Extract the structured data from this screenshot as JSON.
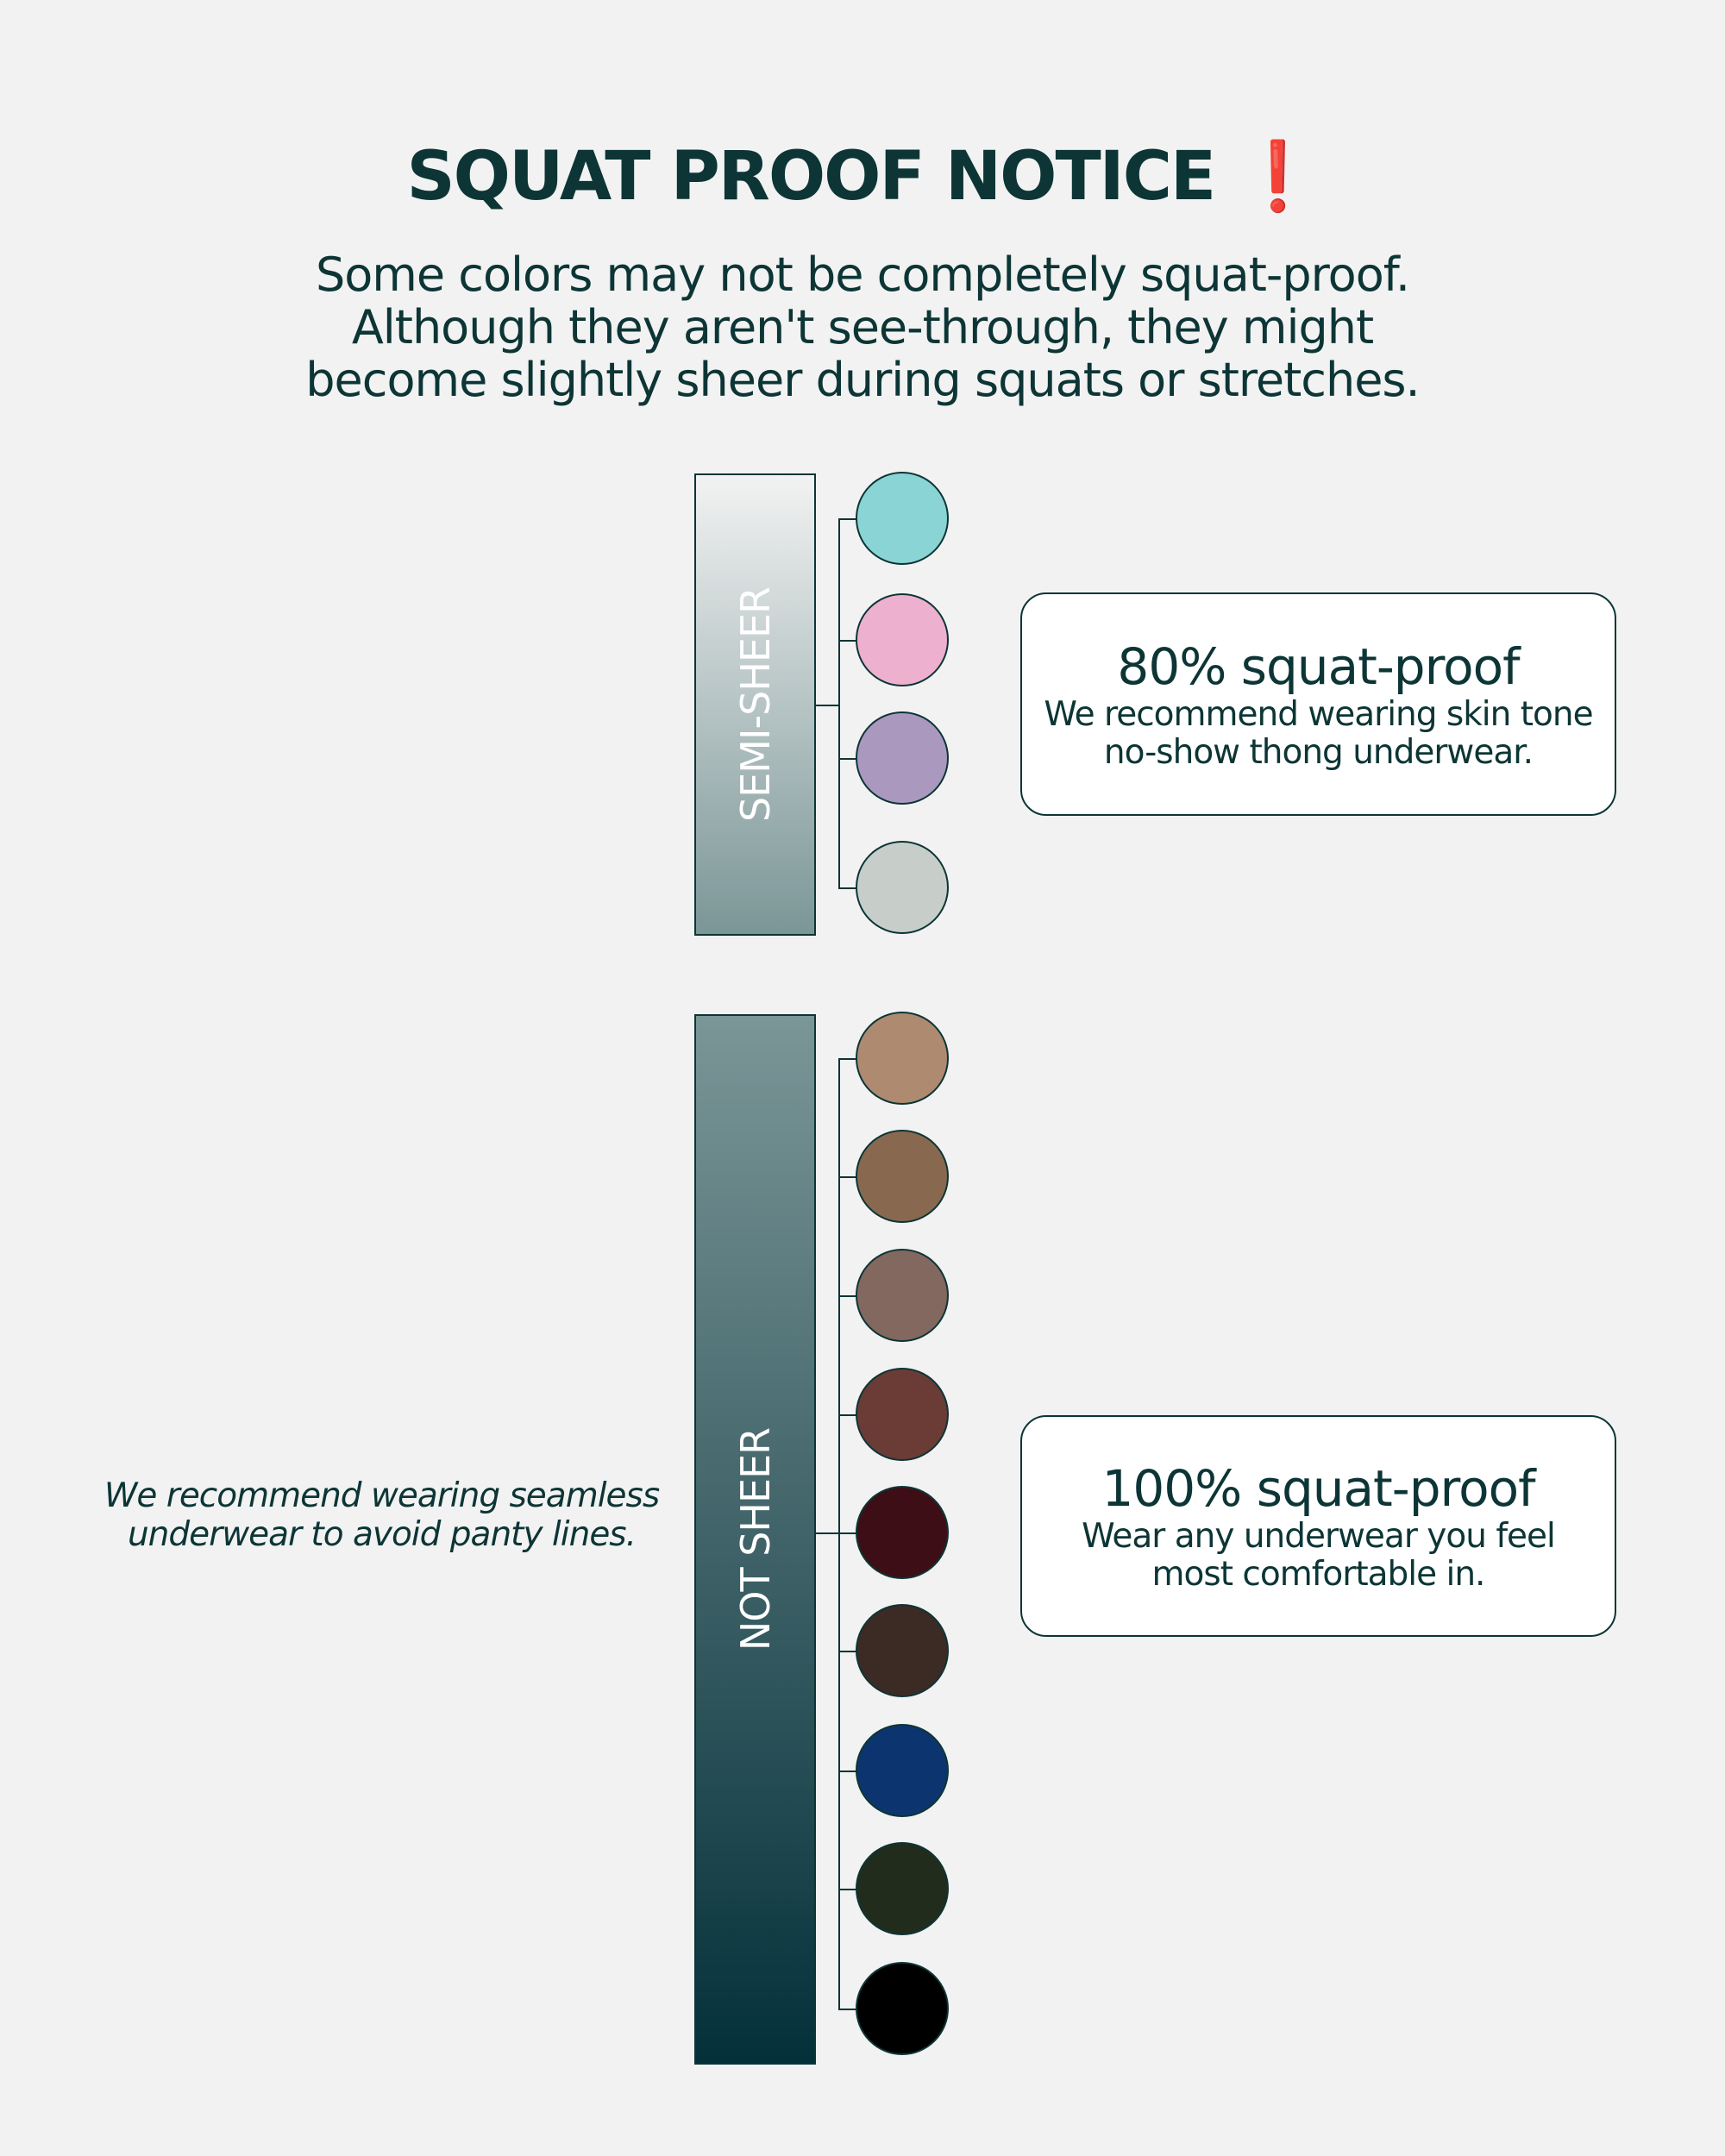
{
  "title": {
    "text": "SQUAT PROOF NOTICE",
    "icon": "exclamation-icon",
    "icon_glyph": "❗"
  },
  "subtitle": [
    "Some colors may not be completely squat-proof.",
    "Although they aren't see-through, they might",
    "become slightly sheer during squats or stretches."
  ],
  "groups": [
    {
      "label": "SEMI-SHEER",
      "colors": [
        "#8ad4d6",
        "#eeb0cf",
        "#aa98bf",
        "#c7ceca"
      ],
      "box": {
        "heading": "80% squat-proof",
        "lines": [
          "We recommend wearing skin tone",
          "no-show thong underwear."
        ]
      }
    },
    {
      "label": "NOT SHEER",
      "colors": [
        "#ae8a70",
        "#88694f",
        "#82685e",
        "#6b3b35",
        "#3d0e16",
        "#3c2a24",
        "#0c3570",
        "#212c1c",
        "#000000"
      ],
      "box": {
        "heading": "100% squat-proof",
        "lines": [
          "Wear any underwear you feel",
          "most comfortable in."
        ]
      }
    }
  ],
  "note": [
    "We recommend wearing seamless",
    "underwear to avoid panty lines."
  ],
  "colors": {
    "text": "#0d3535",
    "accent": "#d9131a",
    "background": "#f2f2f2"
  }
}
